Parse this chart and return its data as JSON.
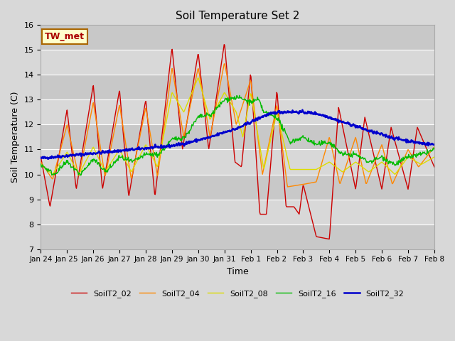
{
  "title": "Soil Temperature Set 2",
  "xlabel": "Time",
  "ylabel": "Soil Temperature (C)",
  "ylim": [
    7.0,
    16.0
  ],
  "yticks": [
    7.0,
    8.0,
    9.0,
    10.0,
    11.0,
    12.0,
    13.0,
    14.0,
    15.0,
    16.0
  ],
  "xtick_labels": [
    "Jan 24",
    "Jan 25",
    "Jan 26",
    "Jan 27",
    "Jan 28",
    "Jan 29",
    "Jan 30",
    "Jan 31",
    "Feb 1",
    "Feb 2",
    "Feb 3",
    "Feb 4",
    "Feb 5",
    "Feb 6",
    "Feb 7",
    "Feb 8"
  ],
  "annotation_text": "TW_met",
  "annotation_color": "#aa0000",
  "annotation_bg": "#ffffcc",
  "annotation_border": "#aa6600",
  "series_colors": {
    "SoilT2_02": "#cc0000",
    "SoilT2_04": "#ff8800",
    "SoilT2_08": "#dddd00",
    "SoilT2_16": "#00bb00",
    "SoilT2_32": "#0000cc"
  },
  "series_linewidths": {
    "SoilT2_02": 1.0,
    "SoilT2_04": 1.0,
    "SoilT2_08": 1.0,
    "SoilT2_16": 1.0,
    "SoilT2_32": 1.8
  },
  "background_color": "#d8d8d8",
  "plot_bg_color": "#d8d8d8",
  "stripe_color": "#c8c8c8",
  "grid_color": "#ffffff",
  "num_points": 720
}
